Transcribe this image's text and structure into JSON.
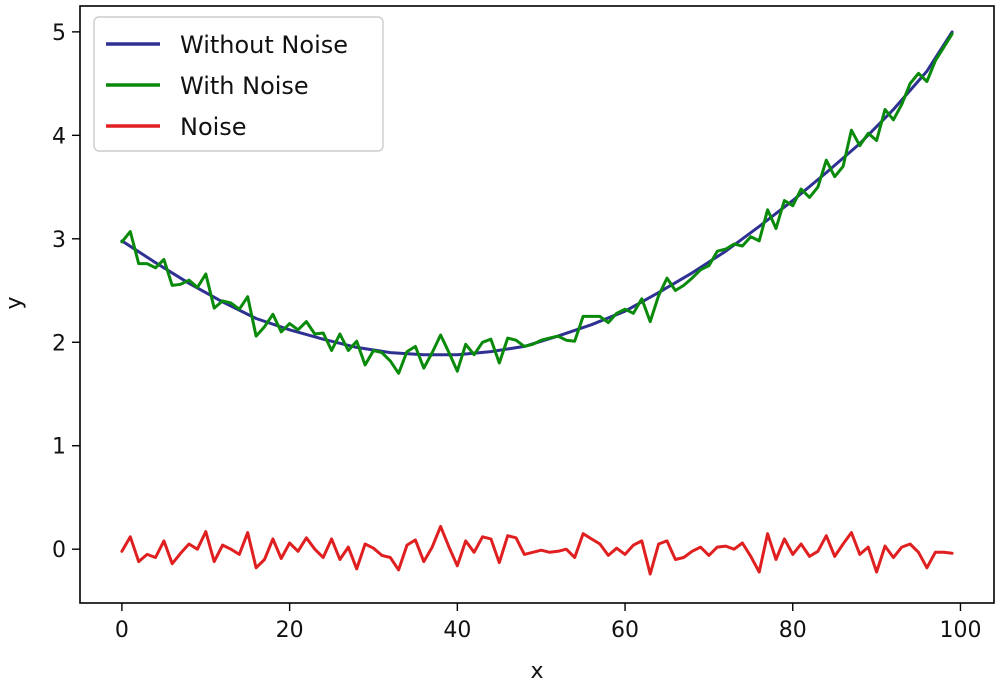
{
  "chart_data": {
    "type": "line",
    "xlabel": "x",
    "ylabel": "y",
    "xlim": [
      -5,
      104
    ],
    "ylim": [
      -0.52,
      5.25
    ],
    "xticks": [
      0,
      20,
      40,
      60,
      80,
      100
    ],
    "yticks": [
      0,
      1,
      2,
      3,
      4,
      5
    ],
    "grid": false,
    "legend": {
      "position": "top-left"
    },
    "series": [
      {
        "name": "Without Noise",
        "color": "#2e3192",
        "x": [
          0,
          4,
          8,
          12,
          16,
          20,
          24,
          28,
          32,
          36,
          40,
          44,
          48,
          52,
          56,
          60,
          64,
          68,
          72,
          76,
          80,
          84,
          88,
          92,
          96,
          99
        ],
        "y": [
          2.98,
          2.77,
          2.57,
          2.39,
          2.23,
          2.12,
          2.03,
          1.95,
          1.9,
          1.88,
          1.88,
          1.91,
          1.96,
          2.06,
          2.17,
          2.3,
          2.48,
          2.67,
          2.88,
          3.12,
          3.37,
          3.64,
          3.92,
          4.25,
          4.62,
          5.0
        ]
      },
      {
        "name": "With Noise",
        "color": "#0a8a0a",
        "x": [
          0,
          1,
          2,
          3,
          4,
          5,
          6,
          7,
          8,
          9,
          10,
          11,
          12,
          13,
          14,
          15,
          16,
          17,
          18,
          19,
          20,
          21,
          22,
          23,
          24,
          25,
          26,
          27,
          28,
          29,
          30,
          31,
          32,
          33,
          34,
          35,
          36,
          37,
          38,
          39,
          40,
          41,
          42,
          43,
          44,
          45,
          46,
          47,
          48,
          49,
          50,
          51,
          52,
          53,
          54,
          55,
          56,
          57,
          58,
          59,
          60,
          61,
          62,
          63,
          64,
          65,
          66,
          67,
          68,
          69,
          70,
          71,
          72,
          73,
          74,
          75,
          76,
          77,
          78,
          79,
          80,
          81,
          82,
          83,
          84,
          85,
          86,
          87,
          88,
          89,
          90,
          91,
          92,
          93,
          94,
          95,
          96,
          97,
          98,
          99
        ],
        "y": [
          2.97,
          3.07,
          2.76,
          2.76,
          2.72,
          2.8,
          2.55,
          2.56,
          2.6,
          2.53,
          2.66,
          2.33,
          2.4,
          2.38,
          2.32,
          2.44,
          2.06,
          2.15,
          2.27,
          2.1,
          2.18,
          2.12,
          2.2,
          2.08,
          2.09,
          1.92,
          2.08,
          1.92,
          2.01,
          1.78,
          1.92,
          1.9,
          1.82,
          1.7,
          1.91,
          1.96,
          1.75,
          1.9,
          2.07,
          1.9,
          1.72,
          1.98,
          1.88,
          2.0,
          2.03,
          1.8,
          2.04,
          2.02,
          1.96,
          1.98,
          2.02,
          2.04,
          2.06,
          2.02,
          2.01,
          2.25,
          2.25,
          2.25,
          2.19,
          2.28,
          2.32,
          2.28,
          2.42,
          2.2,
          2.45,
          2.62,
          2.5,
          2.55,
          2.62,
          2.7,
          2.74,
          2.88,
          2.9,
          2.95,
          2.93,
          3.02,
          2.98,
          3.28,
          3.1,
          3.37,
          3.32,
          3.48,
          3.4,
          3.5,
          3.76,
          3.6,
          3.7,
          4.05,
          3.9,
          4.02,
          3.95,
          4.25,
          4.15,
          4.3,
          4.5,
          4.6,
          4.52,
          4.72,
          4.85,
          4.98
        ]
      },
      {
        "name": "Noise",
        "color": "#e02020",
        "x": [
          0,
          1,
          2,
          3,
          4,
          5,
          6,
          7,
          8,
          9,
          10,
          11,
          12,
          13,
          14,
          15,
          16,
          17,
          18,
          19,
          20,
          21,
          22,
          23,
          24,
          25,
          26,
          27,
          28,
          29,
          30,
          31,
          32,
          33,
          34,
          35,
          36,
          37,
          38,
          39,
          40,
          41,
          42,
          43,
          44,
          45,
          46,
          47,
          48,
          49,
          50,
          51,
          52,
          53,
          54,
          55,
          56,
          57,
          58,
          59,
          60,
          61,
          62,
          63,
          64,
          65,
          66,
          67,
          68,
          69,
          70,
          71,
          72,
          73,
          74,
          75,
          76,
          77,
          78,
          79,
          80,
          81,
          82,
          83,
          84,
          85,
          86,
          87,
          88,
          89,
          90,
          91,
          92,
          93,
          94,
          95,
          96,
          97,
          98,
          99
        ],
        "y": [
          -0.02,
          0.12,
          -0.12,
          -0.05,
          -0.08,
          0.08,
          -0.14,
          -0.04,
          0.05,
          0.0,
          0.17,
          -0.12,
          0.04,
          0.0,
          -0.05,
          0.16,
          -0.18,
          -0.1,
          0.1,
          -0.09,
          0.06,
          -0.02,
          0.11,
          0.0,
          -0.08,
          0.1,
          -0.1,
          0.02,
          -0.19,
          0.05,
          0.01,
          -0.06,
          -0.08,
          -0.2,
          0.04,
          0.09,
          -0.12,
          0.02,
          0.22,
          0.02,
          -0.16,
          0.08,
          -0.03,
          0.12,
          0.1,
          -0.13,
          0.13,
          0.11,
          -0.05,
          -0.03,
          -0.01,
          -0.03,
          -0.02,
          0.0,
          -0.08,
          0.15,
          0.1,
          0.05,
          -0.06,
          0.01,
          -0.05,
          0.04,
          0.08,
          -0.24,
          0.05,
          0.08,
          -0.1,
          -0.08,
          -0.02,
          0.02,
          -0.06,
          0.02,
          0.03,
          0.0,
          0.06,
          -0.07,
          -0.22,
          0.15,
          -0.1,
          0.1,
          -0.05,
          0.05,
          -0.07,
          -0.02,
          0.13,
          -0.07,
          0.05,
          0.16,
          -0.05,
          0.02,
          -0.22,
          0.03,
          -0.08,
          0.02,
          0.05,
          -0.03,
          -0.18,
          -0.03,
          -0.03,
          -0.04
        ]
      }
    ]
  }
}
